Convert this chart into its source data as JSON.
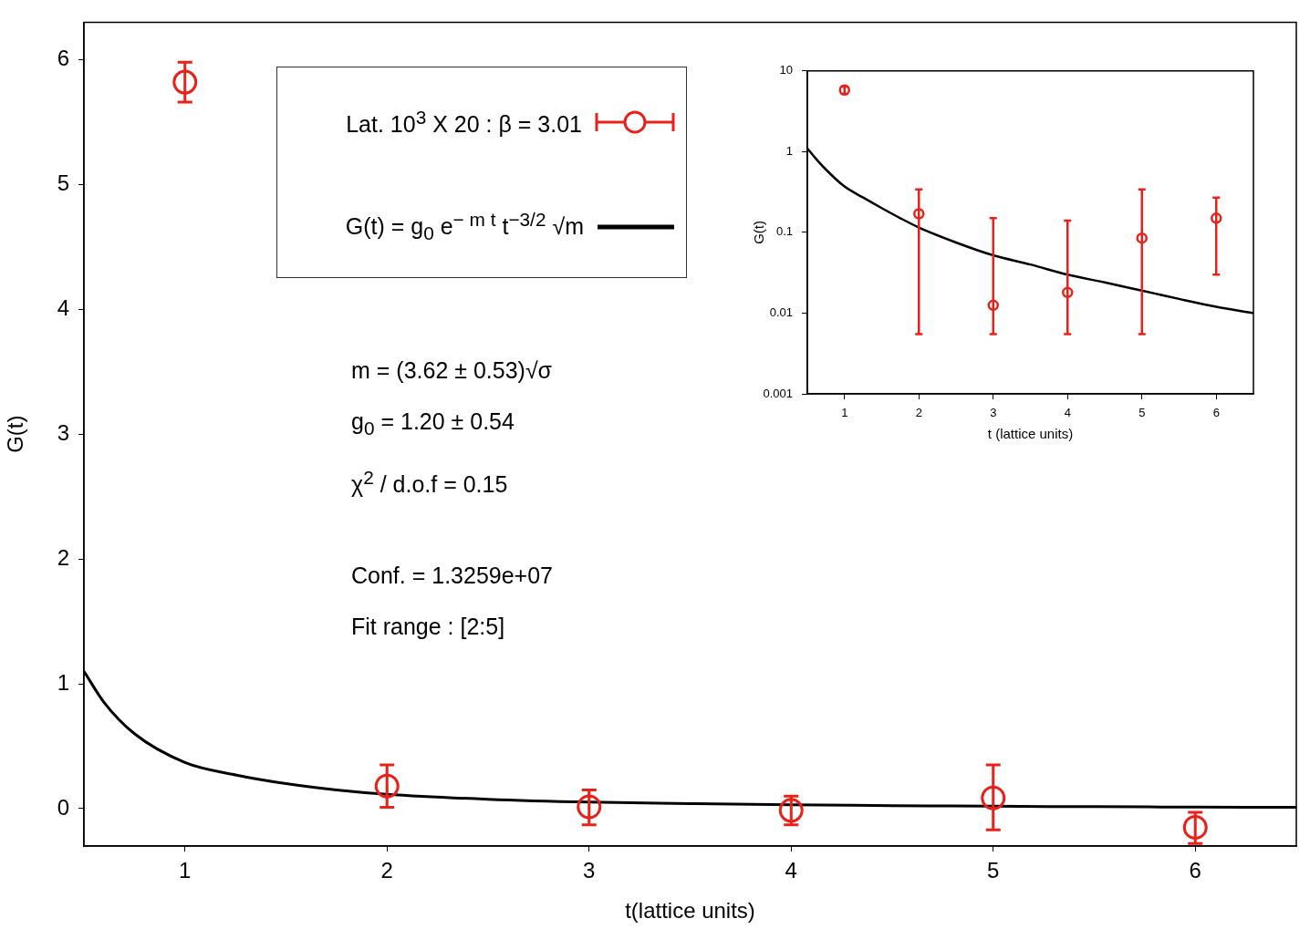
{
  "chart_data": [
    {
      "type": "scatter",
      "xlabel": "t(lattice units)",
      "ylabel": "G(t)",
      "xlim": [
        0.5,
        6.5
      ],
      "xticks": [
        1,
        2,
        3,
        4,
        5,
        6
      ],
      "ylim": [
        -0.3,
        6.3
      ],
      "yticks": [
        0,
        1,
        2,
        3,
        4,
        5,
        6
      ],
      "grid": false,
      "legend": "top left",
      "annotations": [
        "m = (3.62 ± 0.53)√σ",
        "g$_{0}$ = 1.20 ± 0.54",
        "χ$^{2}$ / d.o.f = 0.15",
        "Conf. = 1.3259e+07",
        "Fit range : [2:5]"
      ],
      "series": [
        {
          "name": "Lat. 10$^{3}$ X 20 : β = 3.01",
          "type": "scatter",
          "marker": "circle",
          "color": "#e8211a",
          "x": [
            1,
            2,
            3,
            4,
            5,
            6
          ],
          "values": [
            5.82,
            0.18,
            0.014,
            -0.014,
            0.085,
            -0.15
          ],
          "errors": [
            [
              5.66,
              5.98
            ],
            [
              0.01,
              0.35
            ],
            [
              -0.13,
              0.15
            ],
            [
              -0.13,
              0.1
            ],
            [
              -0.17,
              0.35
            ],
            [
              -0.28,
              -0.03
            ]
          ]
        },
        {
          "name": "G(t) = g$_{0}$ e$^{− m t}$ t$^{−3/2}$ √m",
          "type": "line",
          "marker": "none",
          "color": "#000000",
          "x": [
            0.5,
            0.6,
            0.75,
            1,
            1.25,
            1.5,
            1.75,
            2,
            2.5,
            3,
            3.5,
            4,
            4.5,
            5,
            5.5,
            6,
            6.5
          ],
          "values": [
            1.1,
            0.85,
            0.6,
            0.37,
            0.27,
            0.2,
            0.15,
            0.115,
            0.075,
            0.052,
            0.04,
            0.03,
            0.024,
            0.019,
            0.015,
            0.012,
            0.01
          ]
        }
      ]
    },
    {
      "type": "scatter",
      "xlabel": "t (lattice units)",
      "ylabel": "G(t)",
      "xlim": [
        0.5,
        6.5
      ],
      "xticks": [
        1,
        2,
        3,
        4,
        5,
        6
      ],
      "ylim": [
        0.001,
        10
      ],
      "yticks": [
        0.001,
        0.01,
        0.1,
        1,
        10
      ],
      "log": "y",
      "grid": false,
      "series": [
        {
          "type": "scatter",
          "marker": "circle",
          "color": "#e8211a",
          "x": [
            1,
            2,
            3,
            4,
            5,
            6
          ],
          "values": [
            5.8,
            0.17,
            0.0125,
            0.018,
            0.085,
            0.15
          ],
          "errors": [
            [
              5.2,
              6.4
            ],
            [
              0.0055,
              0.34
            ],
            [
              0.0055,
              0.15
            ],
            [
              0.0055,
              0.14
            ],
            [
              0.0055,
              0.34
            ],
            [
              0.03,
              0.27
            ]
          ]
        },
        {
          "type": "line",
          "marker": "none",
          "color": "#000000",
          "x": [
            0.5,
            0.6,
            0.75,
            1,
            1.25,
            1.5,
            1.75,
            2,
            2.5,
            3,
            3.5,
            4,
            4.5,
            5,
            5.5,
            6,
            6.5
          ],
          "values": [
            1.1,
            0.85,
            0.6,
            0.37,
            0.27,
            0.2,
            0.15,
            0.115,
            0.075,
            0.052,
            0.04,
            0.03,
            0.024,
            0.019,
            0.015,
            0.012,
            0.01
          ]
        }
      ]
    }
  ]
}
